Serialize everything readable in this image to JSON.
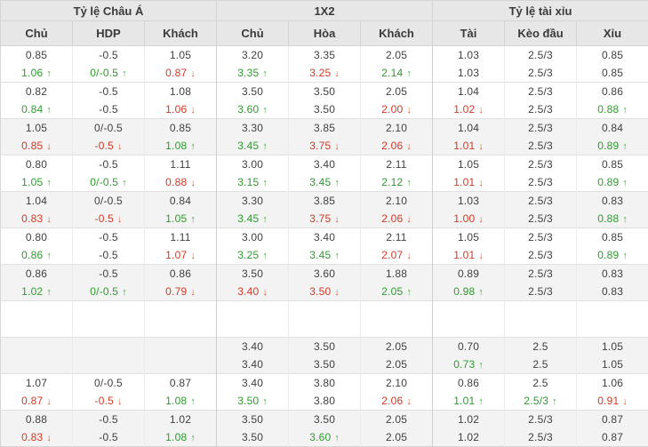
{
  "table": {
    "groups": [
      {
        "label": "Tỷ lệ Châu Á"
      },
      {
        "label": "1X2"
      },
      {
        "label": "Tỷ lệ tài xỉu"
      }
    ],
    "columns": [
      "Chủ",
      "HDP",
      "Khách",
      "Chủ",
      "Hòa",
      "Khách",
      "Tài",
      "Kèo đầu",
      "Xỉu"
    ],
    "colors": {
      "up": "#2f9b2f",
      "down": "#cf3a27",
      "up_arrow": "#3fae3f",
      "down_arrow": "#e0592e",
      "header_bg": "#e7e7e7",
      "band_gray": "#f3f3f3"
    },
    "matches": [
      {
        "shade": "white",
        "rows": [
          [
            "0.85",
            "-0.5",
            "1.05",
            "3.20",
            "3.35",
            "2.05",
            "1.03",
            "2.5/3",
            "0.85"
          ],
          [
            {
              "t": "1.06",
              "c": "green",
              "a": "up"
            },
            {
              "t": "0/-0.5",
              "c": "green",
              "a": "up"
            },
            {
              "t": "0.87",
              "c": "red",
              "a": "down"
            },
            {
              "t": "3.35",
              "c": "green",
              "a": "up"
            },
            {
              "t": "3.25",
              "c": "red",
              "a": "down"
            },
            {
              "t": "2.14",
              "c": "green",
              "a": "up"
            },
            "1.03",
            "2.5/3",
            "0.85"
          ]
        ]
      },
      {
        "shade": "white",
        "rows": [
          [
            "0.82",
            "-0.5",
            "1.08",
            "3.50",
            "3.50",
            "2.05",
            "1.04",
            "2.5/3",
            "0.86"
          ],
          [
            {
              "t": "0.84",
              "c": "green",
              "a": "up"
            },
            "-0.5",
            {
              "t": "1.06",
              "c": "red",
              "a": "down"
            },
            {
              "t": "3.60",
              "c": "green",
              "a": "up"
            },
            "3.50",
            {
              "t": "2.00",
              "c": "red",
              "a": "down"
            },
            {
              "t": "1.02",
              "c": "red",
              "a": "down"
            },
            "2.5/3",
            {
              "t": "0.88",
              "c": "green",
              "a": "up"
            }
          ]
        ]
      },
      {
        "shade": "gray",
        "rows": [
          [
            "1.05",
            "0/-0.5",
            "0.85",
            "3.30",
            "3.85",
            "2.10",
            "1.04",
            "2.5/3",
            "0.84"
          ],
          [
            {
              "t": "0.85",
              "c": "red",
              "a": "down"
            },
            {
              "t": "-0.5",
              "c": "red",
              "a": "down"
            },
            {
              "t": "1.08",
              "c": "green",
              "a": "up"
            },
            {
              "t": "3.45",
              "c": "green",
              "a": "up"
            },
            {
              "t": "3.75",
              "c": "red",
              "a": "down"
            },
            {
              "t": "2.06",
              "c": "red",
              "a": "down"
            },
            {
              "t": "1.01",
              "c": "red",
              "a": "down"
            },
            "2.5/3",
            {
              "t": "0.89",
              "c": "green",
              "a": "up"
            }
          ]
        ]
      },
      {
        "shade": "white",
        "rows": [
          [
            "0.80",
            "-0.5",
            "1.11",
            "3.00",
            "3.40",
            "2.11",
            "1.05",
            "2.5/3",
            "0.85"
          ],
          [
            {
              "t": "1.05",
              "c": "green",
              "a": "up"
            },
            {
              "t": "0/-0.5",
              "c": "green",
              "a": "up"
            },
            {
              "t": "0.88",
              "c": "red",
              "a": "down"
            },
            {
              "t": "3.15",
              "c": "green",
              "a": "up"
            },
            {
              "t": "3.45",
              "c": "green",
              "a": "up"
            },
            {
              "t": "2.12",
              "c": "green",
              "a": "up"
            },
            {
              "t": "1.01",
              "c": "red",
              "a": "down"
            },
            "2.5/3",
            {
              "t": "0.89",
              "c": "green",
              "a": "up"
            }
          ]
        ]
      },
      {
        "shade": "gray",
        "rows": [
          [
            "1.04",
            "0/-0.5",
            "0.84",
            "3.30",
            "3.85",
            "2.10",
            "1.03",
            "2.5/3",
            "0.83"
          ],
          [
            {
              "t": "0.83",
              "c": "red",
              "a": "down"
            },
            {
              "t": "-0.5",
              "c": "red",
              "a": "down"
            },
            {
              "t": "1.05",
              "c": "green",
              "a": "up"
            },
            {
              "t": "3.45",
              "c": "green",
              "a": "up"
            },
            {
              "t": "3.75",
              "c": "red",
              "a": "down"
            },
            {
              "t": "2.06",
              "c": "red",
              "a": "down"
            },
            {
              "t": "1.00",
              "c": "red",
              "a": "down"
            },
            "2.5/3",
            {
              "t": "0.88",
              "c": "green",
              "a": "up"
            }
          ]
        ]
      },
      {
        "shade": "white",
        "rows": [
          [
            "0.80",
            "-0.5",
            "1.11",
            "3.00",
            "3.40",
            "2.11",
            "1.05",
            "2.5/3",
            "0.85"
          ],
          [
            {
              "t": "0.86",
              "c": "green",
              "a": "up"
            },
            "-0.5",
            {
              "t": "1.07",
              "c": "red",
              "a": "down"
            },
            {
              "t": "3.25",
              "c": "green",
              "a": "up"
            },
            {
              "t": "3.45",
              "c": "green",
              "a": "up"
            },
            {
              "t": "2.07",
              "c": "red",
              "a": "down"
            },
            {
              "t": "1.01",
              "c": "red",
              "a": "down"
            },
            "2.5/3",
            {
              "t": "0.89",
              "c": "green",
              "a": "up"
            }
          ]
        ]
      },
      {
        "shade": "gray",
        "rows": [
          [
            "0.86",
            "-0.5",
            "0.86",
            "3.50",
            "3.60",
            "1.88",
            "0.89",
            "2.5/3",
            "0.83"
          ],
          [
            {
              "t": "1.02",
              "c": "green",
              "a": "up"
            },
            {
              "t": "0/-0.5",
              "c": "green",
              "a": "up"
            },
            {
              "t": "0.79",
              "c": "red",
              "a": "down"
            },
            {
              "t": "3.40",
              "c": "red",
              "a": "down"
            },
            {
              "t": "3.50",
              "c": "red",
              "a": "down"
            },
            {
              "t": "2.05",
              "c": "green",
              "a": "up"
            },
            {
              "t": "0.98",
              "c": "green",
              "a": "up"
            },
            "2.5/3",
            "0.83"
          ]
        ]
      },
      {
        "shade": "white",
        "rows": [
          [
            "",
            "",
            "",
            "",
            "",
            "",
            "",
            "",
            ""
          ],
          [
            "",
            "",
            "",
            "",
            "",
            "",
            "",
            "",
            ""
          ]
        ]
      },
      {
        "shade": "gray",
        "rows": [
          [
            "",
            "",
            "",
            "3.40",
            "3.50",
            "2.05",
            "0.70",
            "2.5",
            "1.05"
          ],
          [
            "",
            "",
            "",
            "3.40",
            "3.50",
            "2.05",
            {
              "t": "0.73",
              "c": "green",
              "a": "up"
            },
            "2.5",
            "1.05"
          ]
        ]
      },
      {
        "shade": "white",
        "rows": [
          [
            "1.07",
            "0/-0.5",
            "0.87",
            "3.40",
            "3.80",
            "2.10",
            "0.86",
            "2.5",
            "1.06"
          ],
          [
            {
              "t": "0.87",
              "c": "red",
              "a": "down"
            },
            {
              "t": "-0.5",
              "c": "red",
              "a": "down"
            },
            {
              "t": "1.08",
              "c": "green",
              "a": "up"
            },
            {
              "t": "3.50",
              "c": "green",
              "a": "up"
            },
            "3.80",
            {
              "t": "2.06",
              "c": "red",
              "a": "down"
            },
            {
              "t": "1.01",
              "c": "green",
              "a": "up"
            },
            {
              "t": "2.5/3",
              "c": "green",
              "a": "up"
            },
            {
              "t": "0.91",
              "c": "red",
              "a": "down"
            }
          ]
        ]
      },
      {
        "shade": "gray",
        "rows": [
          [
            "0.88",
            "-0.5",
            "1.02",
            "3.50",
            "3.50",
            "2.05",
            "1.02",
            "2.5/3",
            "0.87"
          ],
          [
            {
              "t": "0.83",
              "c": "red",
              "a": "down"
            },
            "-0.5",
            {
              "t": "1.08",
              "c": "green",
              "a": "up"
            },
            "3.50",
            {
              "t": "3.60",
              "c": "green",
              "a": "up"
            },
            "2.05",
            "1.02",
            "2.5/3",
            "0.87"
          ]
        ]
      }
    ]
  }
}
